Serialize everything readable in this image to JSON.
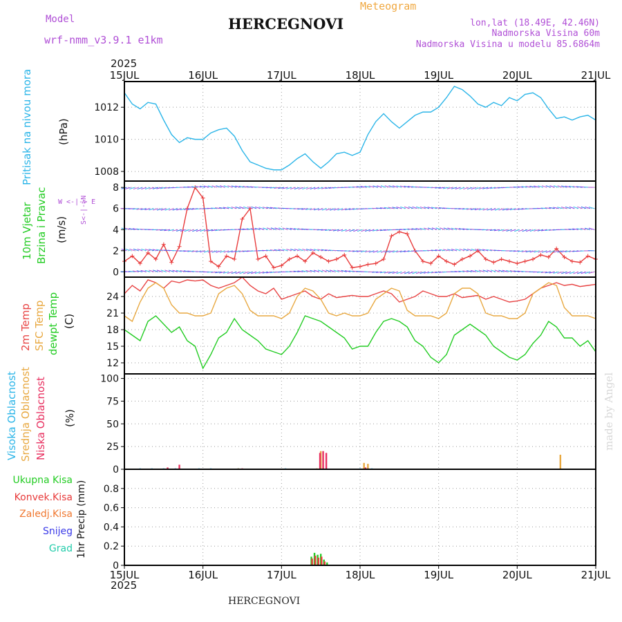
{
  "header": {
    "model_label": "Model",
    "model_value": "wrf-nmm_v3.9.1 e1km",
    "type_label": "Meteogram",
    "station": "HERCEGNOVI",
    "lonlat": "lon,lat (18.49E, 42.46N)",
    "altitude": "Nadmorska Visina 60m",
    "altitude_model": "Nadmorska Visina u modelu 85.6864m",
    "year_top": "2025",
    "year_bottom": "2025",
    "footer_station": "HERCEGNOVI",
    "credit": "made by Angel"
  },
  "time_axis": {
    "ticks": [
      "15JUL",
      "16JUL",
      "17JUL",
      "18JUL",
      "19JUL",
      "20JUL",
      "21JUL"
    ],
    "range_days": [
      0,
      6
    ]
  },
  "panel_labels": {
    "pressure": {
      "name": "Pritisak na nivou mora",
      "unit": "(hPa)"
    },
    "wind": {
      "name1": "10m Vjetar",
      "name2": "Brzina i Pravac",
      "unit": "(m/s)",
      "compass": "W <-|-> E",
      "compass_v": "S<-|->N"
    },
    "temp": {
      "t2m": "2m Temp",
      "sfc": "SFC Temp",
      "dew": "dewpt Temp",
      "unit": "(C)"
    },
    "cloud": {
      "high": "Visoka Oblacnost",
      "mid": "Srednja Oblacnost",
      "low": "Niska Oblacnost",
      "unit": "(%)"
    },
    "precip": {
      "total": "Ukupna Kisa",
      "conv": "Konvek.Kisa",
      "ice": "Zaledj.Kisa",
      "snow": "Snijeg",
      "hail": "Grad",
      "unit": "1hr Precip (mm)"
    }
  },
  "colors": {
    "pressure": "#2bb5e8",
    "wind_speed": "#e83a3a",
    "wind_gust_line": "#111111",
    "t2m": "#e84444",
    "sfc": "#e8a840",
    "dew": "#22cc22",
    "cloud_high": "#2bb5e8",
    "cloud_mid": "#e8a840",
    "cloud_low": "#e83060",
    "precip_total": "#22cc22",
    "precip_conv": "#e83a3a",
    "precip_ice": "#f07830",
    "precip_snow": "#3a3ae8",
    "precip_hail": "#22ccaa",
    "purple": "#b04fd6",
    "grid": "#999999"
  },
  "chart_data": [
    {
      "type": "line",
      "panel": "pressure",
      "ylabel": "(hPa)",
      "ylim": [
        1007.4,
        1013.6
      ],
      "yticks": [
        1008,
        1010,
        1012
      ],
      "grid": true,
      "x": [
        0,
        0.1,
        0.2,
        0.3,
        0.4,
        0.5,
        0.6,
        0.7,
        0.8,
        0.9,
        1.0,
        1.1,
        1.2,
        1.3,
        1.4,
        1.5,
        1.6,
        1.7,
        1.8,
        1.9,
        2.0,
        2.1,
        2.2,
        2.3,
        2.4,
        2.5,
        2.6,
        2.7,
        2.8,
        2.9,
        3.0,
        3.1,
        3.2,
        3.3,
        3.4,
        3.5,
        3.6,
        3.7,
        3.8,
        3.9,
        4.0,
        4.1,
        4.2,
        4.3,
        4.4,
        4.5,
        4.6,
        4.7,
        4.8,
        4.9,
        5.0,
        5.1,
        5.2,
        5.3,
        5.4,
        5.5,
        5.6,
        5.7,
        5.8,
        5.9,
        6.0
      ],
      "series": [
        {
          "values": [
            1012.9,
            1012.2,
            1011.9,
            1012.3,
            1012.2,
            1011.2,
            1010.3,
            1009.8,
            1010.1,
            1010.0,
            1010.0,
            1010.4,
            1010.6,
            1010.7,
            1010.2,
            1009.3,
            1008.6,
            1008.4,
            1008.2,
            1008.1,
            1008.1,
            1008.4,
            1008.8,
            1009.1,
            1008.6,
            1008.2,
            1008.6,
            1009.1,
            1009.2,
            1009.0,
            1009.2,
            1010.3,
            1011.1,
            1011.6,
            1011.1,
            1010.7,
            1011.1,
            1011.5,
            1011.7,
            1011.7,
            1012.0,
            1012.6,
            1013.3,
            1013.1,
            1012.7,
            1012.2,
            1012.0,
            1012.3,
            1012.1,
            1012.6,
            1012.4,
            1012.8,
            1012.9,
            1012.6,
            1011.9,
            1011.3,
            1011.4,
            1011.2,
            1011.4,
            1011.5,
            1011.2
          ]
        }
      ]
    },
    {
      "type": "line",
      "panel": "wind",
      "ylabel": "(m/s)",
      "ylim": [
        -0.5,
        8.6
      ],
      "yticks": [
        0,
        2,
        4,
        6,
        8
      ],
      "grid": true,
      "x": [
        0,
        0.1,
        0.2,
        0.3,
        0.4,
        0.5,
        0.6,
        0.7,
        0.8,
        0.9,
        1.0,
        1.1,
        1.2,
        1.3,
        1.4,
        1.5,
        1.6,
        1.7,
        1.8,
        1.9,
        2.0,
        2.1,
        2.2,
        2.3,
        2.4,
        2.5,
        2.6,
        2.7,
        2.8,
        2.9,
        3.0,
        3.1,
        3.2,
        3.3,
        3.4,
        3.5,
        3.6,
        3.7,
        3.8,
        3.9,
        4.0,
        4.1,
        4.2,
        4.3,
        4.4,
        4.5,
        4.6,
        4.7,
        4.8,
        4.9,
        5.0,
        5.1,
        5.2,
        5.3,
        5.4,
        5.5,
        5.6,
        5.7,
        5.8,
        5.9,
        6.0
      ],
      "series": [
        {
          "values": [
            1.0,
            1.5,
            0.8,
            1.8,
            1.2,
            2.6,
            0.9,
            2.4,
            6.0,
            8.0,
            7.0,
            1.0,
            0.5,
            1.5,
            1.2,
            5.0,
            6.0,
            1.2,
            1.5,
            0.4,
            0.6,
            1.2,
            1.5,
            1.0,
            1.8,
            1.4,
            1.0,
            1.2,
            1.6,
            0.4,
            0.5,
            0.7,
            0.8,
            1.2,
            3.4,
            3.8,
            3.6,
            2.0,
            1.0,
            0.8,
            1.5,
            1.0,
            0.7,
            1.2,
            1.5,
            2.0,
            1.2,
            0.9,
            1.2,
            1.0,
            0.8,
            1.0,
            1.2,
            1.6,
            1.4,
            2.2,
            1.4,
            1.0,
            0.9,
            1.5,
            1.2
          ]
        }
      ]
    },
    {
      "type": "line",
      "panel": "temperature",
      "ylabel": "(C)",
      "ylim": [
        10,
        27.5
      ],
      "yticks": [
        12,
        15,
        18,
        21,
        24
      ],
      "grid": true,
      "x": [
        0,
        0.1,
        0.2,
        0.3,
        0.4,
        0.5,
        0.6,
        0.7,
        0.8,
        0.9,
        1.0,
        1.1,
        1.2,
        1.3,
        1.4,
        1.5,
        1.6,
        1.7,
        1.8,
        1.9,
        2.0,
        2.1,
        2.2,
        2.3,
        2.4,
        2.5,
        2.6,
        2.7,
        2.8,
        2.9,
        3.0,
        3.1,
        3.2,
        3.3,
        3.4,
        3.5,
        3.6,
        3.7,
        3.8,
        3.9,
        4.0,
        4.1,
        4.2,
        4.3,
        4.4,
        4.5,
        4.6,
        4.7,
        4.8,
        4.9,
        5.0,
        5.1,
        5.2,
        5.3,
        5.4,
        5.5,
        5.6,
        5.7,
        5.8,
        5.9,
        6.0
      ],
      "series": [
        {
          "name": "2m Temp",
          "values": [
            24.5,
            26.0,
            25.0,
            27.0,
            26.5,
            25.5,
            26.8,
            26.5,
            27.0,
            26.8,
            27.0,
            26.0,
            25.5,
            26.0,
            26.5,
            27.5,
            26.0,
            25.0,
            24.5,
            25.5,
            23.5,
            24.0,
            24.5,
            25.0,
            24.0,
            23.5,
            24.5,
            23.8,
            24.0,
            24.2,
            24.0,
            24.0,
            24.5,
            25.0,
            24.5,
            23.0,
            23.5,
            24.0,
            25.0,
            24.5,
            24.0,
            24.0,
            24.5,
            23.8,
            24.0,
            24.2,
            23.5,
            24.0,
            23.5,
            23.0,
            23.2,
            23.5,
            24.5,
            25.5,
            26.0,
            26.5,
            26.0,
            26.2,
            25.8,
            26.0,
            26.2
          ]
        },
        {
          "name": "SFC Temp",
          "values": [
            20.5,
            19.5,
            23.0,
            25.5,
            26.5,
            25.5,
            22.5,
            21.0,
            21.0,
            20.5,
            20.5,
            21.0,
            24.5,
            25.5,
            26.0,
            24.5,
            21.5,
            20.5,
            20.5,
            20.5,
            20.0,
            21.0,
            24.0,
            25.5,
            25.0,
            23.5,
            21.0,
            20.5,
            21.0,
            20.5,
            20.5,
            21.0,
            23.5,
            24.5,
            25.5,
            25.0,
            21.5,
            20.5,
            20.5,
            20.5,
            20.0,
            21.0,
            24.5,
            25.5,
            25.5,
            24.5,
            21.0,
            20.5,
            20.5,
            20.0,
            20.0,
            21.0,
            24.5,
            25.5,
            26.5,
            26.0,
            22.0,
            20.5,
            20.5,
            20.5,
            20.0
          ]
        },
        {
          "name": "dewpt Temp",
          "values": [
            18.0,
            17.0,
            16.0,
            19.5,
            20.5,
            19.0,
            17.5,
            18.5,
            16.0,
            15.0,
            11.0,
            13.5,
            16.5,
            17.5,
            20.0,
            18.0,
            17.0,
            16.0,
            14.5,
            14.0,
            13.5,
            15.0,
            17.5,
            20.5,
            20.0,
            19.5,
            18.5,
            17.5,
            16.5,
            14.5,
            15.0,
            15.0,
            17.5,
            19.5,
            20.0,
            19.5,
            18.5,
            16.0,
            15.0,
            13.0,
            12.0,
            13.5,
            17.0,
            18.0,
            19.0,
            18.0,
            17.0,
            15.0,
            14.0,
            13.0,
            12.5,
            13.5,
            15.5,
            17.0,
            19.5,
            18.5,
            16.5,
            16.5,
            15.0,
            16.0,
            14.0
          ]
        }
      ]
    },
    {
      "type": "bar",
      "panel": "cloud",
      "ylabel": "(%)",
      "ylim": [
        0,
        105
      ],
      "yticks": [
        0,
        25,
        50,
        75,
        100
      ],
      "grid": true,
      "series": [
        {
          "name": "Visoka Oblacnost",
          "x": [
            0.2,
            0.35,
            0.5,
            0.65,
            0.95,
            1.1,
            1.45,
            2.05,
            3.0,
            3.05,
            3.1,
            3.15
          ],
          "values": [
            1,
            1,
            1,
            1,
            1,
            1,
            1,
            1,
            1,
            1,
            2,
            1
          ]
        },
        {
          "name": "Srednja Oblacnost",
          "x": [
            0.55,
            0.7,
            1.45,
            2.45,
            2.5,
            3.05,
            3.1,
            5.55
          ],
          "values": [
            1,
            1,
            1,
            1,
            20,
            7,
            6,
            16
          ]
        },
        {
          "name": "Niska Oblacnost",
          "x": [
            0.55,
            0.7,
            1.5,
            2.49,
            2.53,
            2.57,
            3.07
          ],
          "values": [
            2,
            5,
            1,
            18,
            20,
            18,
            2
          ]
        }
      ]
    },
    {
      "type": "bar",
      "panel": "precip",
      "ylabel": "1hr Precip (mm)",
      "ylim": [
        0,
        1.0
      ],
      "yticks": [
        0,
        0.2,
        0.4,
        0.6,
        0.8
      ],
      "grid": true,
      "series": [
        {
          "name": "Ukupna Kisa",
          "x": [
            2.38,
            2.42,
            2.46,
            2.5,
            2.54,
            2.58
          ],
          "values": [
            0.09,
            0.13,
            0.11,
            0.12,
            0.06,
            0.03
          ]
        },
        {
          "name": "Konvek.Kisa",
          "x": [
            2.39,
            2.43,
            2.47,
            2.51,
            2.55
          ],
          "values": [
            0.07,
            0.1,
            0.08,
            0.09,
            0.04
          ]
        },
        {
          "name": "Zaledj.Kisa",
          "x": [],
          "values": []
        },
        {
          "name": "Snijeg",
          "x": [],
          "values": []
        },
        {
          "name": "Grad",
          "x": [],
          "values": []
        }
      ]
    }
  ]
}
